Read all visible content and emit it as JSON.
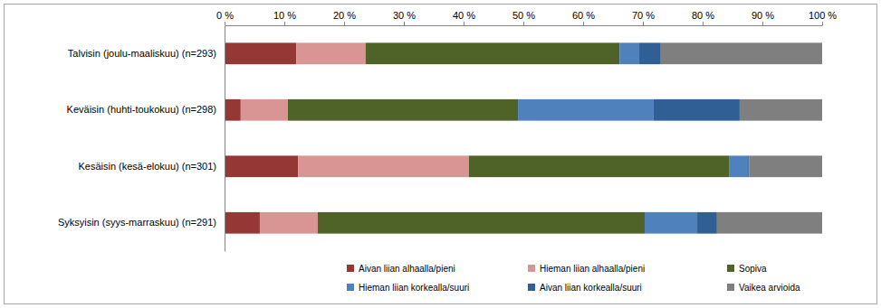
{
  "chart_data": {
    "type": "bar",
    "orientation": "horizontal",
    "stacked": true,
    "grid": false,
    "legend": "bottom",
    "data_labels": false,
    "categories": [
      "Talvisin (joulu-maaliskuu) (n=293)",
      "Keväisin (huhti-toukokuu) (n=298)",
      "Kesäisin (kesä-elokuu) (n=301)",
      "Syksyisin (syys-marraskuu) (n=291)"
    ],
    "xlim": [
      0,
      100
    ],
    "xticks": [
      {
        "value": 0,
        "label": "0 %"
      },
      {
        "value": 10,
        "label": "10 %"
      },
      {
        "value": 20,
        "label": "20 %"
      },
      {
        "value": 30,
        "label": "30 %"
      },
      {
        "value": 40,
        "label": "40 %"
      },
      {
        "value": 50,
        "label": "50 %"
      },
      {
        "value": 60,
        "label": "60 %"
      },
      {
        "value": 70,
        "label": "70 %"
      },
      {
        "value": 80,
        "label": "80 %"
      },
      {
        "value": 90,
        "label": "90 %"
      },
      {
        "value": 100,
        "label": "100 %"
      }
    ],
    "series": [
      {
        "name": "Aivan liian alhaalla/pieni",
        "color": "#953735",
        "values": [
          12.0,
          2.7,
          12.3,
          5.9
        ]
      },
      {
        "name": "Hieman liian alhaalla/pieni",
        "color": "#d99594",
        "values": [
          11.6,
          7.9,
          28.6,
          9.7
        ]
      },
      {
        "name": "Sopiva",
        "color": "#4f6228",
        "values": [
          42.5,
          38.5,
          43.6,
          54.7
        ]
      },
      {
        "name": "Hieman liian korkealla/suuri",
        "color": "#4f81bd",
        "values": [
          3.3,
          22.7,
          3.1,
          8.8
        ]
      },
      {
        "name": "Aivan liian korkealla/suuri",
        "color": "#2f5f95",
        "values": [
          3.6,
          14.4,
          0.2,
          3.3
        ]
      },
      {
        "name": "Vaikea arvioida",
        "color": "#7f7f7f",
        "values": [
          27.0,
          13.8,
          12.2,
          17.6
        ]
      }
    ]
  }
}
